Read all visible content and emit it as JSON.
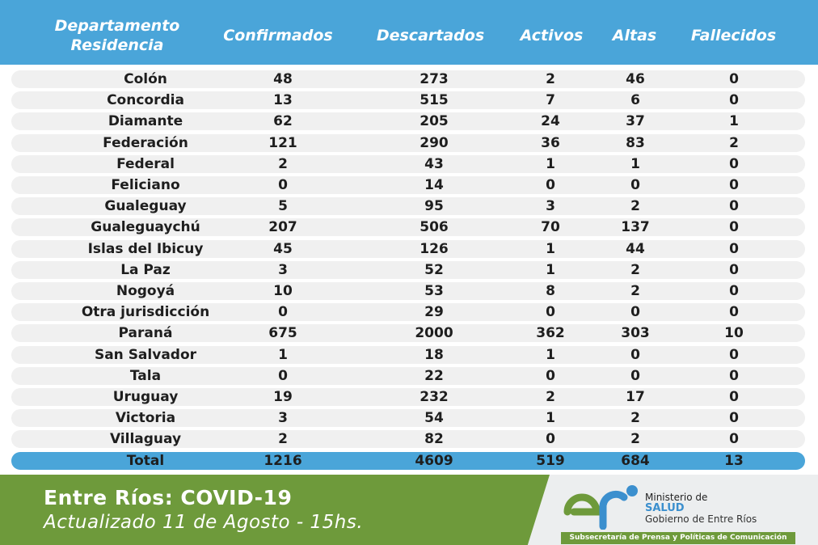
{
  "table": {
    "headers": {
      "departamento": "Departamento Residencia",
      "confirmados": "Confirmados",
      "descartados": "Descartados",
      "activos": "Activos",
      "altas": "Altas",
      "fallecidos": "Fallecidos"
    },
    "rows": [
      {
        "departamento": "Colón",
        "confirmados": "48",
        "descartados": "273",
        "activos": "2",
        "altas": "46",
        "fallecidos": "0"
      },
      {
        "departamento": "Concordia",
        "confirmados": "13",
        "descartados": "515",
        "activos": "7",
        "altas": "6",
        "fallecidos": "0"
      },
      {
        "departamento": "Diamante",
        "confirmados": "62",
        "descartados": "205",
        "activos": "24",
        "altas": "37",
        "fallecidos": "1"
      },
      {
        "departamento": "Federación",
        "confirmados": "121",
        "descartados": "290",
        "activos": "36",
        "altas": "83",
        "fallecidos": "2"
      },
      {
        "departamento": "Federal",
        "confirmados": "2",
        "descartados": "43",
        "activos": "1",
        "altas": "1",
        "fallecidos": "0"
      },
      {
        "departamento": "Feliciano",
        "confirmados": "0",
        "descartados": "14",
        "activos": "0",
        "altas": "0",
        "fallecidos": "0"
      },
      {
        "departamento": "Gualeguay",
        "confirmados": "5",
        "descartados": "95",
        "activos": "3",
        "altas": "2",
        "fallecidos": "0"
      },
      {
        "departamento": "Gualeguaychú",
        "confirmados": "207",
        "descartados": "506",
        "activos": "70",
        "altas": "137",
        "fallecidos": "0"
      },
      {
        "departamento": "Islas del Ibicuy",
        "confirmados": "45",
        "descartados": "126",
        "activos": "1",
        "altas": "44",
        "fallecidos": "0"
      },
      {
        "departamento": "La Paz",
        "confirmados": "3",
        "descartados": "52",
        "activos": "1",
        "altas": "2",
        "fallecidos": "0"
      },
      {
        "departamento": "Nogoyá",
        "confirmados": "10",
        "descartados": "53",
        "activos": "8",
        "altas": "2",
        "fallecidos": "0"
      },
      {
        "departamento": "Otra jurisdicción",
        "confirmados": "0",
        "descartados": "29",
        "activos": "0",
        "altas": "0",
        "fallecidos": "0"
      },
      {
        "departamento": "Paraná",
        "confirmados": "675",
        "descartados": "2000",
        "activos": "362",
        "altas": "303",
        "fallecidos": "10"
      },
      {
        "departamento": "San Salvador",
        "confirmados": "1",
        "descartados": "18",
        "activos": "1",
        "altas": "0",
        "fallecidos": "0"
      },
      {
        "departamento": "Tala",
        "confirmados": "0",
        "descartados": "22",
        "activos": "0",
        "altas": "0",
        "fallecidos": "0"
      },
      {
        "departamento": "Uruguay",
        "confirmados": "19",
        "descartados": "232",
        "activos": "2",
        "altas": "17",
        "fallecidos": "0"
      },
      {
        "departamento": "Victoria",
        "confirmados": "3",
        "descartados": "54",
        "activos": "1",
        "altas": "2",
        "fallecidos": "0"
      },
      {
        "departamento": "Villaguay",
        "confirmados": "2",
        "descartados": "82",
        "activos": "0",
        "altas": "2",
        "fallecidos": "0"
      }
    ],
    "total": {
      "departamento": "Total",
      "confirmados": "1216",
      "descartados": "4609",
      "activos": "519",
      "altas": "684",
      "fallecidos": "13"
    }
  },
  "footer": {
    "title": "Entre Ríos: COVID-19",
    "subtitle": "Actualizado 11 de Agosto - 15hs.",
    "logo": {
      "icon": "er-logo",
      "line1": "Ministerio de",
      "line2": "SALUD",
      "line3": "Gobierno de Entre Ríos",
      "subsecretaria": "Subsecretaría de Prensa y Políticas de Comunicación"
    }
  },
  "colors": {
    "header_blue": "#4aa5d9",
    "footer_green": "#6e9a3b",
    "row_gray": "#f0f0f0"
  }
}
